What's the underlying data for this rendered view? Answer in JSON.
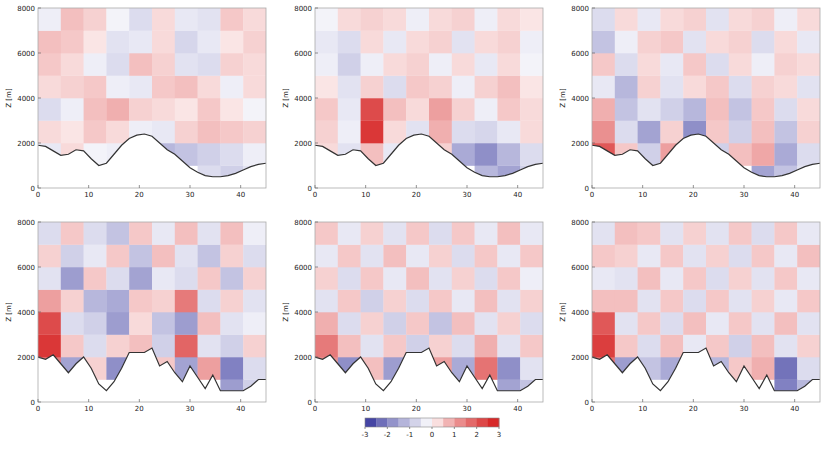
{
  "chart_data": [
    {
      "type": "heatmap",
      "y_label": "Z [m]",
      "xlim": [
        0,
        45
      ],
      "ylim": [
        0,
        8000
      ],
      "xticks": [
        0,
        10,
        20,
        30,
        40
      ],
      "yticks": [
        0,
        2000,
        4000,
        6000,
        8000
      ],
      "x_edges": [
        0,
        4.5,
        9,
        13.5,
        18,
        22.5,
        27,
        31.5,
        36,
        40.5,
        45
      ],
      "y_edges": [
        0,
        1000,
        2000,
        3000,
        4000,
        5000,
        6000,
        7000,
        8000
      ],
      "x": [
        0,
        1.5,
        3,
        4.5,
        6,
        7.5,
        9,
        10.5,
        12,
        13.5,
        15,
        16.5,
        18,
        19.5,
        21,
        22.5,
        24,
        25.5,
        27,
        28.5,
        30,
        31.5,
        33,
        34.5,
        36,
        37.5,
        39,
        40.5,
        42,
        43.5,
        45
      ],
      "terrain": [
        1900,
        1850,
        1650,
        1450,
        1500,
        1700,
        1650,
        1300,
        1000,
        1100,
        1500,
        1900,
        2200,
        2350,
        2400,
        2300,
        2000,
        1700,
        1500,
        1200,
        900,
        700,
        550,
        500,
        500,
        550,
        650,
        800,
        950,
        1050,
        1100
      ],
      "cells": [
        [
          0,
          0,
          0,
          0,
          0,
          0,
          0,
          -0.6,
          -0.8,
          -0.5
        ],
        [
          -0.4,
          0.3,
          -0.2,
          -0.3,
          -0.5,
          -1.2,
          -1.0,
          -0.8,
          -0.6,
          -0.3
        ],
        [
          0.3,
          0.2,
          0.5,
          0.3,
          -0.3,
          -0.4,
          0.4,
          0.6,
          0.5,
          0.4
        ],
        [
          -0.6,
          -0.3,
          0.6,
          0.8,
          0.4,
          0.3,
          0.2,
          0.5,
          0.2,
          -0.2
        ],
        [
          0.3,
          0.4,
          0.5,
          -0.3,
          -0.4,
          0.5,
          0.6,
          0.3,
          -0.3,
          0.3
        ],
        [
          0.5,
          0.3,
          -0.3,
          -0.6,
          0.6,
          0.4,
          -0.5,
          -0.6,
          0.4,
          0.3
        ],
        [
          0.6,
          0.5,
          0.2,
          -0.5,
          -0.4,
          0.3,
          -0.7,
          -0.4,
          0.2,
          0.4
        ],
        [
          -0.3,
          0.6,
          0.4,
          -0.2,
          -0.6,
          0.3,
          -0.4,
          -0.5,
          0.5,
          0.3
        ]
      ]
    },
    {
      "type": "heatmap",
      "y_label": "Z [m]",
      "xlim": [
        0,
        45
      ],
      "ylim": [
        0,
        8000
      ],
      "xticks": [
        0,
        10,
        20,
        30,
        40
      ],
      "yticks": [
        0,
        2000,
        4000,
        6000,
        8000
      ],
      "x_edges": [
        0,
        4.5,
        9,
        13.5,
        18,
        22.5,
        27,
        31.5,
        36,
        40.5,
        45
      ],
      "y_edges": [
        0,
        1000,
        2000,
        3000,
        4000,
        5000,
        6000,
        7000,
        8000
      ],
      "x": [
        0,
        1.5,
        3,
        4.5,
        6,
        7.5,
        9,
        10.5,
        12,
        13.5,
        15,
        16.5,
        18,
        19.5,
        21,
        22.5,
        24,
        25.5,
        27,
        28.5,
        30,
        31.5,
        33,
        34.5,
        36,
        37.5,
        39,
        40.5,
        42,
        43.5,
        45
      ],
      "terrain": [
        1900,
        1850,
        1650,
        1450,
        1500,
        1700,
        1650,
        1300,
        1000,
        1100,
        1500,
        1900,
        2200,
        2350,
        2400,
        2300,
        2000,
        1700,
        1500,
        1200,
        900,
        700,
        550,
        500,
        500,
        550,
        650,
        800,
        950,
        1050,
        1100
      ],
      "cells": [
        [
          0,
          0,
          0,
          0,
          0,
          0,
          0,
          -1.2,
          -1.5,
          -0.8
        ],
        [
          0.3,
          -0.5,
          0.6,
          -0.4,
          -0.3,
          0.4,
          -1.4,
          -1.8,
          -1.2,
          -0.6
        ],
        [
          0.4,
          -0.3,
          2.5,
          0.3,
          -0.5,
          0.8,
          -0.6,
          -0.7,
          -0.4,
          0.3
        ],
        [
          0.5,
          -0.4,
          2.2,
          0.6,
          0.3,
          1.0,
          0.4,
          -0.3,
          0.5,
          0.3
        ],
        [
          0.2,
          -0.5,
          0.4,
          -0.6,
          0.5,
          0.4,
          -0.3,
          0.4,
          0.6,
          0.2
        ],
        [
          -0.3,
          -0.8,
          -0.3,
          0.3,
          0.4,
          -0.3,
          0.3,
          -0.4,
          0.3,
          -0.2
        ],
        [
          -0.4,
          -0.6,
          0.3,
          -0.4,
          0.3,
          0.4,
          -0.5,
          0.3,
          0.4,
          -0.3
        ],
        [
          -0.2,
          0.3,
          0.4,
          0.3,
          -0.3,
          0.3,
          0.4,
          -0.3,
          0.3,
          0.2
        ]
      ]
    },
    {
      "type": "heatmap",
      "y_label": "Z [m]",
      "xlim": [
        0,
        45
      ],
      "ylim": [
        0,
        8000
      ],
      "xticks": [
        0,
        10,
        20,
        30,
        40
      ],
      "yticks": [
        0,
        2000,
        4000,
        6000,
        8000
      ],
      "x_edges": [
        0,
        4.5,
        9,
        13.5,
        18,
        22.5,
        27,
        31.5,
        36,
        40.5,
        45
      ],
      "y_edges": [
        0,
        1000,
        2000,
        3000,
        4000,
        5000,
        6000,
        7000,
        8000
      ],
      "x": [
        0,
        1.5,
        3,
        4.5,
        6,
        7.5,
        9,
        10.5,
        12,
        13.5,
        15,
        16.5,
        18,
        19.5,
        21,
        22.5,
        24,
        25.5,
        27,
        28.5,
        30,
        31.5,
        33,
        34.5,
        36,
        37.5,
        39,
        40.5,
        42,
        43.5,
        45
      ],
      "terrain": [
        1900,
        1850,
        1650,
        1450,
        1500,
        1700,
        1650,
        1300,
        1000,
        1100,
        1500,
        1900,
        2200,
        2350,
        2400,
        2300,
        2000,
        1700,
        1500,
        1200,
        900,
        700,
        550,
        500,
        500,
        550,
        650,
        800,
        950,
        1050,
        1100
      ],
      "cells": [
        [
          0,
          0,
          0,
          0,
          0,
          0,
          0,
          -1.5,
          -1.0,
          -0.5
        ],
        [
          2.0,
          0.5,
          -0.8,
          1.0,
          -1.2,
          -0.8,
          0.6,
          0.9,
          -1.4,
          -0.6
        ],
        [
          1.2,
          -0.6,
          -1.5,
          0.4,
          -1.8,
          0.5,
          -0.8,
          0.6,
          -1.0,
          0.4
        ],
        [
          0.8,
          -1.0,
          -0.5,
          -0.8,
          -1.2,
          0.6,
          -1.0,
          0.5,
          -0.6,
          0.3
        ],
        [
          -0.4,
          -1.2,
          0.4,
          -0.5,
          0.3,
          0.5,
          -0.6,
          0.4,
          0.3,
          -0.5
        ],
        [
          0.5,
          -0.6,
          0.3,
          -0.4,
          0.5,
          -0.6,
          0.3,
          -0.3,
          0.4,
          0.3
        ],
        [
          -1.0,
          -0.3,
          0.4,
          0.5,
          -0.5,
          0.3,
          0.4,
          -0.6,
          0.3,
          -0.4
        ],
        [
          -0.6,
          0.3,
          -0.4,
          0.3,
          0.4,
          -0.5,
          0.3,
          0.4,
          -0.3,
          0.3
        ]
      ]
    },
    {
      "type": "heatmap",
      "y_label": "Z [m]",
      "xlim": [
        0,
        45
      ],
      "ylim": [
        0,
        8000
      ],
      "xticks": [
        0,
        10,
        20,
        30,
        40
      ],
      "yticks": [
        0,
        2000,
        4000,
        6000,
        8000
      ],
      "x_edges": [
        0,
        4.5,
        9,
        13.5,
        18,
        22.5,
        27,
        31.5,
        36,
        40.5,
        45
      ],
      "y_edges": [
        0,
        1000,
        2000,
        3000,
        4000,
        5000,
        6000,
        7000,
        8000
      ],
      "x": [
        0,
        1.5,
        3,
        4.5,
        6,
        7.5,
        9,
        10.5,
        12,
        13.5,
        15,
        16.5,
        18,
        19.5,
        21,
        22.5,
        24,
        25.5,
        27,
        28.5,
        30,
        31.5,
        33,
        34.5,
        36,
        37.5,
        39,
        40.5,
        42,
        43.5,
        45
      ],
      "terrain": [
        2000,
        1900,
        2100,
        1700,
        1300,
        1700,
        2000,
        1500,
        800,
        500,
        900,
        1500,
        2200,
        2200,
        2200,
        2400,
        1600,
        1800,
        1300,
        900,
        1600,
        1100,
        600,
        1200,
        500,
        500,
        500,
        500,
        700,
        1000,
        1000
      ],
      "cells": [
        [
          0,
          0,
          0,
          0,
          0,
          0,
          0,
          0,
          -1.6,
          -0.8
        ],
        [
          1.5,
          -1.5,
          0.4,
          -1.8,
          -0.6,
          0.5,
          -1.5,
          1.0,
          -2.0,
          -0.6
        ],
        [
          2.5,
          0.5,
          -0.6,
          0.4,
          0.6,
          -0.8,
          1.8,
          -0.5,
          -0.8,
          0.4
        ],
        [
          2.2,
          -0.6,
          -0.8,
          -1.6,
          0.3,
          -1.0,
          -1.6,
          0.6,
          -0.5,
          -0.3
        ],
        [
          1.0,
          0.4,
          -1.2,
          -1.4,
          0.5,
          0.4,
          1.5,
          -0.6,
          0.4,
          -0.5
        ],
        [
          -0.5,
          -1.6,
          0.5,
          -0.6,
          -1.5,
          -0.4,
          -0.6,
          0.5,
          -1.0,
          0.4
        ],
        [
          0.4,
          -0.8,
          -0.4,
          0.5,
          -1.0,
          0.6,
          -0.5,
          -1.0,
          0.4,
          -0.6
        ],
        [
          -0.6,
          0.5,
          -0.6,
          -1.0,
          0.5,
          -0.4,
          0.6,
          -0.5,
          0.6,
          -0.3
        ]
      ]
    },
    {
      "type": "heatmap",
      "y_label": "Z [m]",
      "xlim": [
        0,
        45
      ],
      "ylim": [
        0,
        8000
      ],
      "xticks": [
        0,
        10,
        20,
        30,
        40
      ],
      "yticks": [
        0,
        2000,
        4000,
        6000,
        8000
      ],
      "x_edges": [
        0,
        4.5,
        9,
        13.5,
        18,
        22.5,
        27,
        31.5,
        36,
        40.5,
        45
      ],
      "y_edges": [
        0,
        1000,
        2000,
        3000,
        4000,
        5000,
        6000,
        7000,
        8000
      ],
      "x": [
        0,
        1.5,
        3,
        4.5,
        6,
        7.5,
        9,
        10.5,
        12,
        13.5,
        15,
        16.5,
        18,
        19.5,
        21,
        22.5,
        24,
        25.5,
        27,
        28.5,
        30,
        31.5,
        33,
        34.5,
        36,
        37.5,
        39,
        40.5,
        42,
        43.5,
        45
      ],
      "terrain": [
        2000,
        1900,
        2100,
        1700,
        1300,
        1700,
        2000,
        1500,
        800,
        500,
        900,
        1500,
        2200,
        2200,
        2200,
        2400,
        1600,
        1800,
        1300,
        900,
        1600,
        1100,
        600,
        1200,
        500,
        500,
        500,
        500,
        700,
        1000,
        1000
      ],
      "cells": [
        [
          0,
          0,
          0,
          0,
          0,
          0,
          0,
          0,
          -1.5,
          -1.0
        ],
        [
          1.2,
          -1.8,
          0.6,
          -1.6,
          -0.5,
          1.0,
          -1.4,
          1.6,
          -1.8,
          -0.5
        ],
        [
          1.5,
          0.6,
          -0.5,
          0.5,
          -0.8,
          0.4,
          -0.6,
          0.8,
          -0.5,
          0.5
        ],
        [
          0.8,
          -0.6,
          0.4,
          -0.8,
          0.5,
          -1.0,
          0.6,
          -0.5,
          0.4,
          -0.6
        ],
        [
          -0.5,
          0.5,
          -0.8,
          0.4,
          -0.6,
          0.5,
          -0.4,
          0.6,
          -0.5,
          0.4
        ],
        [
          0.4,
          -0.6,
          0.5,
          -0.4,
          0.6,
          -0.5,
          0.4,
          -0.6,
          0.5,
          -0.3
        ],
        [
          -0.4,
          0.5,
          -0.5,
          0.6,
          -0.4,
          0.4,
          -0.6,
          0.5,
          -0.4,
          0.5
        ],
        [
          0.5,
          -0.4,
          0.4,
          -0.5,
          0.5,
          -0.6,
          0.5,
          -0.4,
          0.6,
          -0.4
        ]
      ]
    },
    {
      "type": "heatmap",
      "y_label": "Z [m]",
      "xlim": [
        0,
        45
      ],
      "ylim": [
        0,
        8000
      ],
      "xticks": [
        0,
        10,
        20,
        30,
        40
      ],
      "yticks": [
        0,
        2000,
        4000,
        6000,
        8000
      ],
      "x_edges": [
        0,
        4.5,
        9,
        13.5,
        18,
        22.5,
        27,
        31.5,
        36,
        40.5,
        45
      ],
      "y_edges": [
        0,
        1000,
        2000,
        3000,
        4000,
        5000,
        6000,
        7000,
        8000
      ],
      "x": [
        0,
        1.5,
        3,
        4.5,
        6,
        7.5,
        9,
        10.5,
        12,
        13.5,
        15,
        16.5,
        18,
        19.5,
        21,
        22.5,
        24,
        25.5,
        27,
        28.5,
        30,
        31.5,
        33,
        34.5,
        36,
        37.5,
        39,
        40.5,
        42,
        43.5,
        45
      ],
      "terrain": [
        2000,
        1900,
        2100,
        1700,
        1300,
        1700,
        2000,
        1500,
        800,
        500,
        900,
        1500,
        2200,
        2200,
        2200,
        2400,
        1600,
        1800,
        1300,
        900,
        1600,
        1100,
        600,
        1200,
        500,
        500,
        500,
        500,
        700,
        1000,
        1000
      ],
      "cells": [
        [
          0,
          0,
          0,
          0,
          0,
          0,
          0,
          0,
          -2.0,
          -1.2
        ],
        [
          1.6,
          -1.6,
          -1.0,
          -1.4,
          0.6,
          -1.2,
          0.5,
          0.8,
          -2.2,
          -0.6
        ],
        [
          2.4,
          0.5,
          -0.6,
          0.6,
          -0.4,
          0.5,
          -0.8,
          0.6,
          -0.5,
          0.4
        ],
        [
          2.0,
          -0.5,
          0.5,
          -0.6,
          0.6,
          -0.4,
          0.5,
          -0.5,
          0.6,
          -0.5
        ],
        [
          0.6,
          0.6,
          -0.5,
          0.5,
          -0.6,
          0.5,
          -0.5,
          0.4,
          -0.4,
          0.5
        ],
        [
          -0.4,
          -0.5,
          0.6,
          -0.4,
          0.5,
          -0.6,
          0.4,
          -0.5,
          0.5,
          -0.4
        ],
        [
          0.5,
          0.4,
          -0.4,
          0.5,
          -0.5,
          0.4,
          -0.6,
          0.5,
          -0.4,
          0.6
        ],
        [
          -0.5,
          0.6,
          0.5,
          -0.5,
          0.4,
          -0.5,
          0.5,
          -0.6,
          0.5,
          -0.4
        ]
      ]
    },
    {
      "type": "colorbar",
      "lim": [
        -3,
        3
      ],
      "ticks": [
        -3,
        -2,
        -1,
        0,
        1,
        2,
        3
      ]
    }
  ]
}
